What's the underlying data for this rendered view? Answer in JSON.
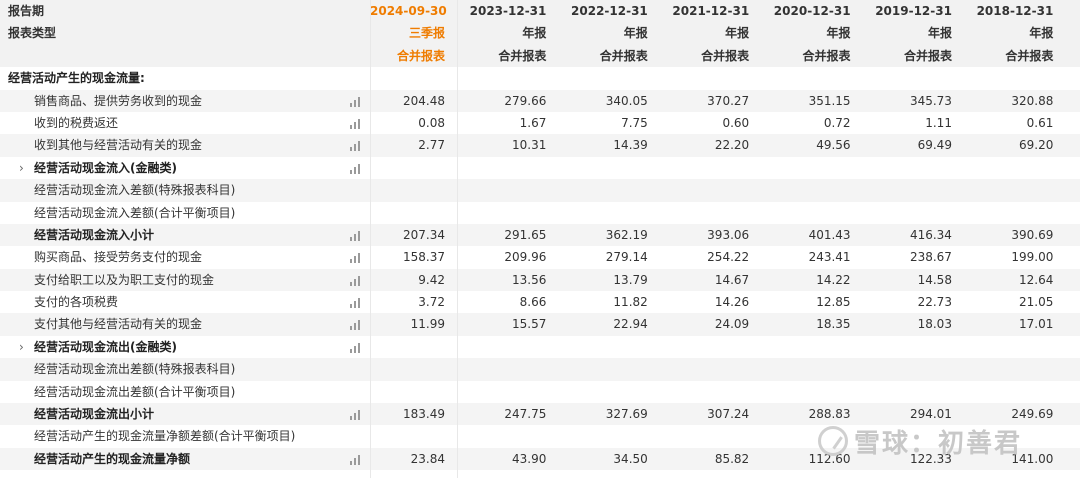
{
  "header": {
    "row1_label": "报告期",
    "row2_label": "报表类型",
    "periods": [
      {
        "date": "2024-09-30",
        "type": "三季报",
        "scope": "合并报表"
      },
      {
        "date": "2023-12-31",
        "type": "年报",
        "scope": "合并报表"
      },
      {
        "date": "2022-12-31",
        "type": "年报",
        "scope": "合并报表"
      },
      {
        "date": "2021-12-31",
        "type": "年报",
        "scope": "合并报表"
      },
      {
        "date": "2020-12-31",
        "type": "年报",
        "scope": "合并报表"
      },
      {
        "date": "2019-12-31",
        "type": "年报",
        "scope": "合并报表"
      },
      {
        "date": "2018-12-31",
        "type": "年报",
        "scope": "合并报表"
      }
    ]
  },
  "section_title": "经营活动产生的现金流量:",
  "rows": [
    {
      "label": "销售商品、提供劳务收到的现金",
      "bold": false,
      "expand": false,
      "chart": true,
      "values": [
        "204.48",
        "279.66",
        "340.05",
        "370.27",
        "351.15",
        "345.73",
        "320.88"
      ]
    },
    {
      "label": "收到的税费返还",
      "bold": false,
      "expand": false,
      "chart": true,
      "values": [
        "0.08",
        "1.67",
        "7.75",
        "0.60",
        "0.72",
        "1.11",
        "0.61"
      ]
    },
    {
      "label": "收到其他与经营活动有关的现金",
      "bold": false,
      "expand": false,
      "chart": true,
      "values": [
        "2.77",
        "10.31",
        "14.39",
        "22.20",
        "49.56",
        "69.49",
        "69.20"
      ]
    },
    {
      "label": "经营活动现金流入(金融类)",
      "bold": true,
      "expand": true,
      "chart": true,
      "values": [
        "",
        "",
        "",
        "",
        "",
        "",
        ""
      ]
    },
    {
      "label": "经营活动现金流入差额(特殊报表科目)",
      "bold": false,
      "expand": false,
      "chart": false,
      "values": [
        "",
        "",
        "",
        "",
        "",
        "",
        ""
      ]
    },
    {
      "label": "经营活动现金流入差额(合计平衡项目)",
      "bold": false,
      "expand": false,
      "chart": false,
      "values": [
        "",
        "",
        "",
        "",
        "",
        "",
        ""
      ]
    },
    {
      "label": "经营活动现金流入小计",
      "bold": true,
      "expand": false,
      "chart": true,
      "values": [
        "207.34",
        "291.65",
        "362.19",
        "393.06",
        "401.43",
        "416.34",
        "390.69"
      ]
    },
    {
      "label": "购买商品、接受劳务支付的现金",
      "bold": false,
      "expand": false,
      "chart": true,
      "values": [
        "158.37",
        "209.96",
        "279.14",
        "254.22",
        "243.41",
        "238.67",
        "199.00"
      ]
    },
    {
      "label": "支付给职工以及为职工支付的现金",
      "bold": false,
      "expand": false,
      "chart": true,
      "values": [
        "9.42",
        "13.56",
        "13.79",
        "14.67",
        "14.22",
        "14.58",
        "12.64"
      ]
    },
    {
      "label": "支付的各项税费",
      "bold": false,
      "expand": false,
      "chart": true,
      "values": [
        "3.72",
        "8.66",
        "11.82",
        "14.26",
        "12.85",
        "22.73",
        "21.05"
      ]
    },
    {
      "label": "支付其他与经营活动有关的现金",
      "bold": false,
      "expand": false,
      "chart": true,
      "values": [
        "11.99",
        "15.57",
        "22.94",
        "24.09",
        "18.35",
        "18.03",
        "17.01"
      ]
    },
    {
      "label": "经营活动现金流出(金融类)",
      "bold": true,
      "expand": true,
      "chart": true,
      "values": [
        "",
        "",
        "",
        "",
        "",
        "",
        ""
      ]
    },
    {
      "label": "经营活动现金流出差额(特殊报表科目)",
      "bold": false,
      "expand": false,
      "chart": false,
      "values": [
        "",
        "",
        "",
        "",
        "",
        "",
        ""
      ]
    },
    {
      "label": "经营活动现金流出差额(合计平衡项目)",
      "bold": false,
      "expand": false,
      "chart": false,
      "values": [
        "",
        "",
        "",
        "",
        "",
        "",
        ""
      ]
    },
    {
      "label": "经营活动现金流出小计",
      "bold": true,
      "expand": false,
      "chart": true,
      "values": [
        "183.49",
        "247.75",
        "327.69",
        "307.24",
        "288.83",
        "294.01",
        "249.69"
      ]
    },
    {
      "label": "经营活动产生的现金流量净额差额(合计平衡项目)",
      "bold": false,
      "expand": false,
      "chart": false,
      "values": [
        "",
        "",
        "",
        "",
        "",
        "",
        ""
      ]
    },
    {
      "label": "经营活动产生的现金流量净额",
      "bold": true,
      "expand": false,
      "chart": true,
      "values": [
        "23.84",
        "43.90",
        "34.50",
        "85.82",
        "112.60",
        "122.33",
        "141.00"
      ]
    }
  ],
  "watermark": {
    "logo_icon": "snowball-logo-icon",
    "text": "雪球：初善君"
  },
  "colors": {
    "accent": "#ef7c00",
    "header_bg": "#f2f2f2",
    "alt_row_bg": "#f4f4f4"
  }
}
